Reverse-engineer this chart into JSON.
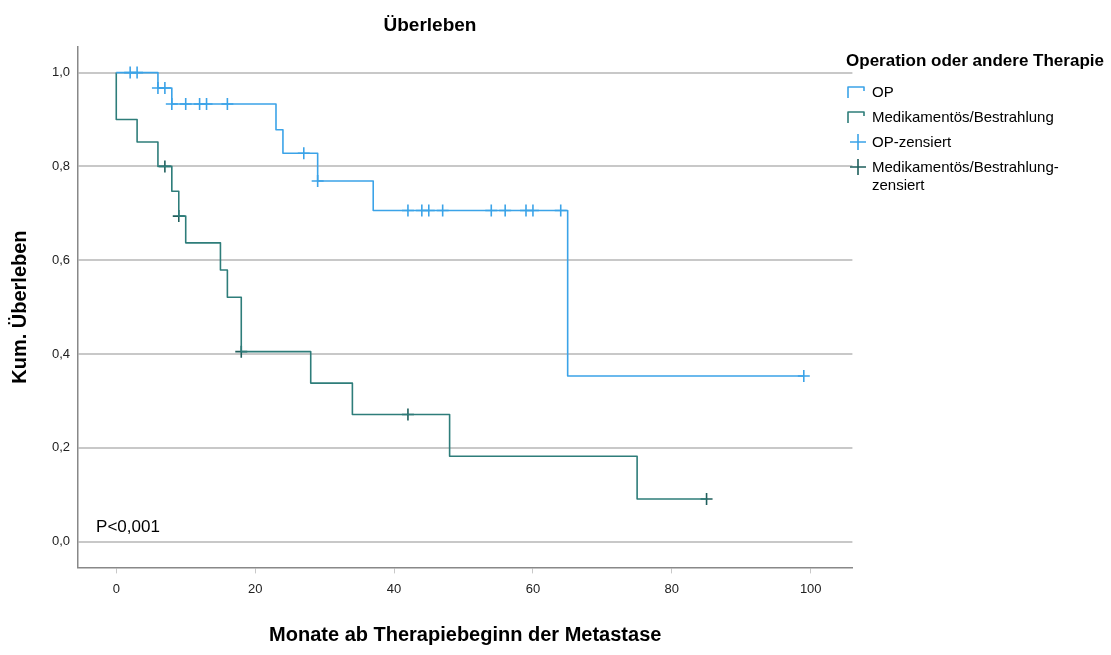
{
  "chart_data": {
    "type": "step",
    "title": "Überleben",
    "xlabel": "Monate ab Therapiebeginn der Metastase",
    "ylabel": "Kum. Überleben",
    "legend_title": "Operation oder andere Therapie",
    "annotations": [
      "P<0,001"
    ],
    "xlim": [
      -5.5,
      106
    ],
    "xticks": [
      0,
      20,
      40,
      60,
      80,
      100
    ],
    "ylim": [
      -0.055,
      1.055
    ],
    "yticks": [
      {
        "value": 0,
        "label": "0,0"
      },
      {
        "value": 0.2,
        "label": "0,2"
      },
      {
        "value": 0.4,
        "label": "0,4"
      },
      {
        "value": 0.6,
        "label": "0,6"
      },
      {
        "value": 0.8,
        "label": "0,8"
      },
      {
        "value": 1,
        "label": "1,0"
      }
    ],
    "grid": "y",
    "legend": "top right",
    "series": [
      {
        "name": "OP",
        "type": "step",
        "color": "#3ba3e8",
        "x": [
          0,
          6,
          8,
          23,
          24,
          29,
          37,
          65,
          99
        ],
        "values": [
          1,
          0.967,
          0.933,
          0.878,
          0.828,
          0.769,
          0.706,
          0.353,
          0.353
        ]
      },
      {
        "name": "Medikamentös/Bestrahlung",
        "type": "step",
        "color": "#2e7d7a",
        "x": [
          0,
          0,
          3,
          6,
          8,
          9,
          10,
          15,
          16,
          18,
          28,
          34,
          48,
          75,
          85
        ],
        "values": [
          1,
          0.9,
          0.852,
          0.8,
          0.747,
          0.694,
          0.637,
          0.579,
          0.521,
          0.405,
          0.338,
          0.271,
          0.182,
          0.091,
          0.091
        ]
      },
      {
        "name": "OP-zensiert",
        "type": "scatter",
        "marker": "cross",
        "color": "#3ba3e8",
        "x": [
          2,
          3,
          6,
          7,
          8,
          10,
          12,
          13,
          16,
          27,
          29,
          42,
          44,
          45,
          47,
          54,
          56,
          59,
          60,
          64,
          99
        ],
        "values": [
          1,
          1,
          0.967,
          0.967,
          0.933,
          0.933,
          0.933,
          0.933,
          0.933,
          0.828,
          0.769,
          0.706,
          0.706,
          0.706,
          0.706,
          0.706,
          0.706,
          0.706,
          0.706,
          0.706,
          0.353
        ]
      },
      {
        "name": "Medikamentös/Bestrahlung-zensiert",
        "type": "scatter",
        "marker": "cross",
        "color": "#1f5f5c",
        "x": [
          7,
          9,
          18,
          42,
          85
        ],
        "values": [
          0.8,
          0.694,
          0.405,
          0.271,
          0.091
        ]
      }
    ]
  }
}
